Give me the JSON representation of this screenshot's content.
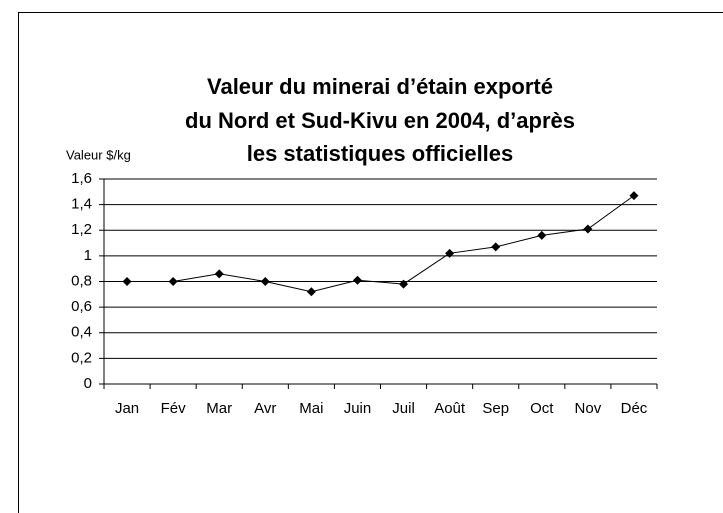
{
  "chart_data": {
    "type": "line",
    "title": [
      "Valeur du minerai d’étain exporté",
      "du Nord et Sud-Kivu en 2004, d’après",
      "les statistiques officielles"
    ],
    "y_label": "Valeur $/kg",
    "categories": [
      "Jan",
      "Fév",
      "Mar",
      "Avr",
      "Mai",
      "Juin",
      "Juil",
      "Août",
      "Sep",
      "Oct",
      "Nov",
      "Déc"
    ],
    "values": [
      0.8,
      0.8,
      0.86,
      0.8,
      0.72,
      0.81,
      0.78,
      1.02,
      1.07,
      1.16,
      1.21,
      1.47
    ],
    "color": "#000000",
    "ylim": [
      0,
      1.6
    ],
    "yticks": [
      0,
      {
        "value": 0.2,
        "label": "0,2"
      },
      {
        "value": 0.4,
        "label": "0,4"
      },
      {
        "value": 0.6,
        "label": "0,6"
      },
      {
        "value": 0.8,
        "label": "0,8"
      },
      1,
      {
        "value": 1.2,
        "label": "1,2"
      },
      {
        "value": 1.4,
        "label": "1,4"
      },
      {
        "value": 1.6,
        "label": "1,6"
      }
    ],
    "grid": true
  }
}
